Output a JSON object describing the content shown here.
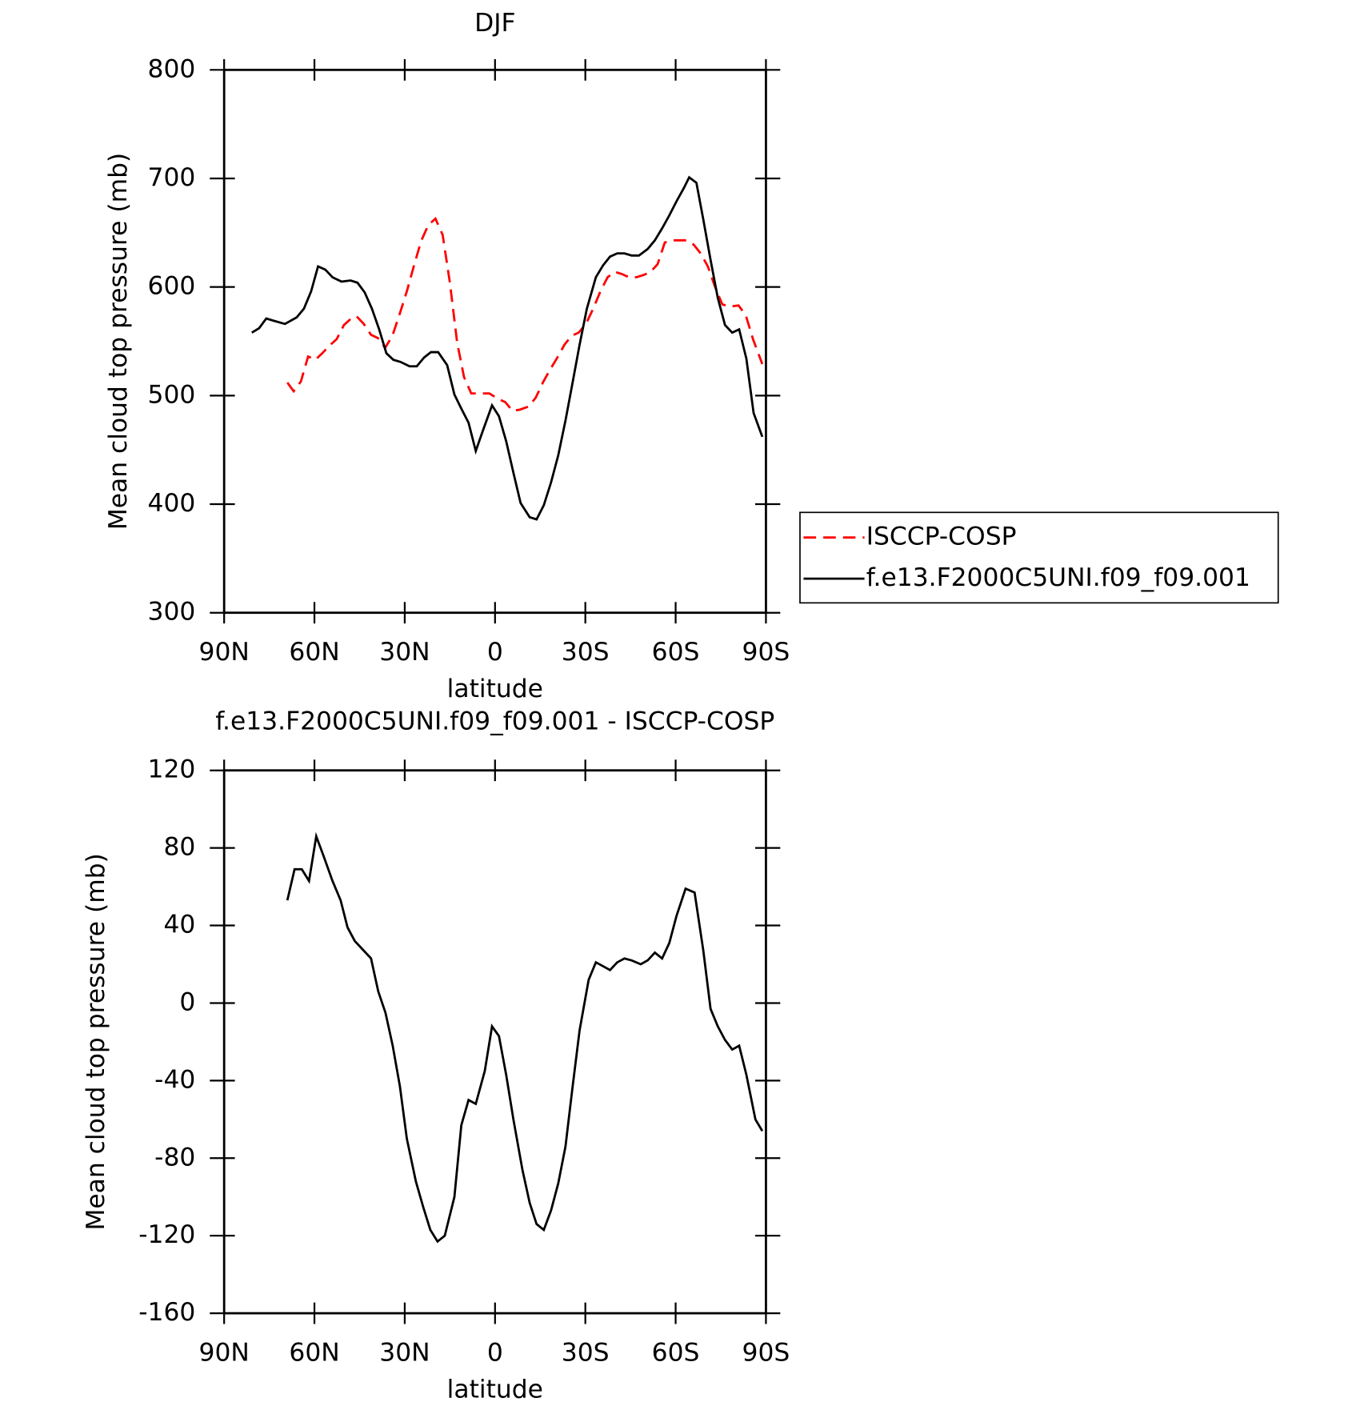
{
  "chart_data": [
    {
      "type": "line",
      "title": "DJF",
      "xlabel": "latitude",
      "ylabel": "Mean cloud top pressure (mb)",
      "xlim": [
        90,
        -90
      ],
      "xticks": [
        {
          "value": 90,
          "label": "90N"
        },
        {
          "value": 60,
          "label": "60N"
        },
        {
          "value": 30,
          "label": "30N"
        },
        0,
        {
          "value": -30,
          "label": "30S"
        },
        {
          "value": -60,
          "label": "60S"
        },
        {
          "value": -90,
          "label": "90S"
        }
      ],
      "ylim": [
        300,
        800
      ],
      "yticks": [
        300,
        400,
        500,
        600,
        700,
        800
      ],
      "legend": "right",
      "series": [
        {
          "name": "ISCCP-COSP",
          "color": "#ff0000",
          "dash": true,
          "x": [
            69,
            66.9,
            64.5,
            62.1,
            59.7,
            57.4,
            55,
            52.6,
            50.2,
            47.8,
            46,
            43.6,
            41.2,
            38.9,
            36.5,
            34.1,
            31.7,
            29.3,
            27,
            24.6,
            22.2,
            19.8,
            17.4,
            15,
            12.6,
            10.3,
            7.9,
            4.9,
            1.9,
            -1,
            -3.4,
            -5.8,
            -8.2,
            -11.2,
            -13.5,
            -15.9,
            -18.3,
            -20.7,
            -23.1,
            -25.4,
            -27.8,
            -30.2,
            -32.6,
            -35,
            -37.4,
            -39.8,
            -42.1,
            -44.5,
            -46.9,
            -49.3,
            -51.7,
            -54,
            -56.4,
            -58.8,
            -61.2,
            -63.6,
            -66,
            -68.3,
            -70.7,
            -73.1,
            -75.5,
            -77.9,
            -80.9,
            -83.3,
            -85.7,
            -88.8
          ],
          "values": [
            512,
            504,
            513,
            536,
            533,
            539,
            546,
            552,
            565,
            571,
            573,
            566,
            556,
            553,
            544,
            555,
            575,
            596,
            619,
            642,
            657,
            663,
            648,
            604,
            549,
            517,
            502,
            502,
            502,
            497,
            494,
            486,
            487,
            490,
            498,
            512,
            524,
            535,
            547,
            555,
            558,
            566,
            580,
            596,
            609,
            614,
            612,
            609,
            609,
            611,
            614,
            621,
            641,
            643,
            643,
            643,
            639,
            631,
            619,
            600,
            584,
            582,
            583,
            574,
            552,
            529
          ]
        },
        {
          "name": "f.e13.F2000C5UNI.f09_f09.001",
          "color": "#000000",
          "dash": false,
          "x": [
            80.8,
            78.4,
            76,
            73.6,
            69.8,
            65.9,
            63.5,
            61.1,
            58.8,
            56.4,
            54,
            51,
            48,
            45.7,
            43.3,
            40.9,
            38.5,
            36.1,
            33.8,
            31.4,
            28.4,
            26,
            23.6,
            21.3,
            18.9,
            15.9,
            13.5,
            11.2,
            8.8,
            6.4,
            4,
            1,
            -1.3,
            -3.7,
            -6.1,
            -8.5,
            -11.5,
            -13.8,
            -16.2,
            -18.6,
            -21,
            -23.4,
            -25.7,
            -28.1,
            -30.5,
            -33.5,
            -35.9,
            -38.2,
            -40.6,
            -43,
            -45.4,
            -47.8,
            -50.7,
            -53.1,
            -55.5,
            -57.9,
            -60.3,
            -62.7,
            -64.5,
            -66.9,
            -69.2,
            -71.6,
            -74,
            -76.4,
            -78.8,
            -81.1,
            -83.5,
            -85.9,
            -88.8
          ],
          "values": [
            558,
            562,
            571,
            569,
            566,
            572,
            580,
            596,
            619,
            616,
            609,
            605,
            606,
            604,
            595,
            580,
            561,
            539,
            533,
            531,
            527,
            527,
            535,
            540,
            540,
            528,
            501,
            488,
            475,
            449,
            468,
            491,
            481,
            458,
            429,
            401,
            388,
            386,
            399,
            420,
            445,
            477,
            511,
            547,
            580,
            609,
            620,
            628,
            631,
            631,
            629,
            629,
            635,
            643,
            654,
            666,
            679,
            691,
            701,
            696,
            662,
            625,
            590,
            565,
            558,
            561,
            534,
            484,
            462
          ]
        }
      ]
    },
    {
      "type": "line",
      "title": "f.e13.F2000C5UNI.f09_f09.001 - ISCCP-COSP",
      "xlabel": "latitude",
      "ylabel": "Mean cloud top pressure (mb)",
      "xlim": [
        90,
        -90
      ],
      "xticks": [
        {
          "value": 90,
          "label": "90N"
        },
        {
          "value": 60,
          "label": "60N"
        },
        {
          "value": 30,
          "label": "30N"
        },
        0,
        {
          "value": -30,
          "label": "30S"
        },
        {
          "value": -60,
          "label": "60S"
        },
        {
          "value": -90,
          "label": "90S"
        }
      ],
      "ylim": [
        -160,
        120
      ],
      "yticks": [
        -160,
        -120,
        -80,
        -40,
        0,
        40,
        80,
        120
      ],
      "series": [
        {
          "color": "#000000",
          "dash": false,
          "x": [
            69,
            66.6,
            64.2,
            61.8,
            59.4,
            57,
            54,
            51.3,
            49,
            46.6,
            44.2,
            41.2,
            38.8,
            36.4,
            34,
            31.6,
            29.3,
            26.3,
            23.9,
            21.5,
            19.1,
            16.7,
            13.5,
            11.2,
            8.8,
            6.4,
            3.4,
            1,
            -1.3,
            -3.7,
            -6.1,
            -9.1,
            -11.5,
            -13.8,
            -16.2,
            -18.6,
            -21,
            -23.4,
            -25.7,
            -28.1,
            -31.1,
            -33.5,
            -35.9,
            -38.2,
            -40.6,
            -43,
            -45.4,
            -48.4,
            -50.7,
            -53.1,
            -55.5,
            -57.9,
            -60.3,
            -63.3,
            -66.3,
            -69.2,
            -71.6,
            -74,
            -76.4,
            -78.8,
            -81.1,
            -83.5,
            -86.5,
            -88.8
          ],
          "values": [
            53,
            69,
            69,
            63,
            86,
            76,
            63,
            53,
            39,
            32,
            28,
            23,
            6,
            -5,
            -22,
            -43,
            -70,
            -92,
            -105,
            -117,
            -123,
            -120,
            -100,
            -63,
            -50,
            -52,
            -35,
            -12,
            -17,
            -37,
            -60,
            -86,
            -103,
            -114,
            -117,
            -107,
            -93,
            -74,
            -44,
            -14,
            12,
            21,
            19,
            17,
            21,
            23,
            22,
            20,
            22,
            26,
            23,
            31,
            45,
            59,
            57,
            27,
            -3,
            -12,
            -19,
            -24,
            -22,
            -37,
            -60,
            -66
          ]
        }
      ]
    }
  ]
}
